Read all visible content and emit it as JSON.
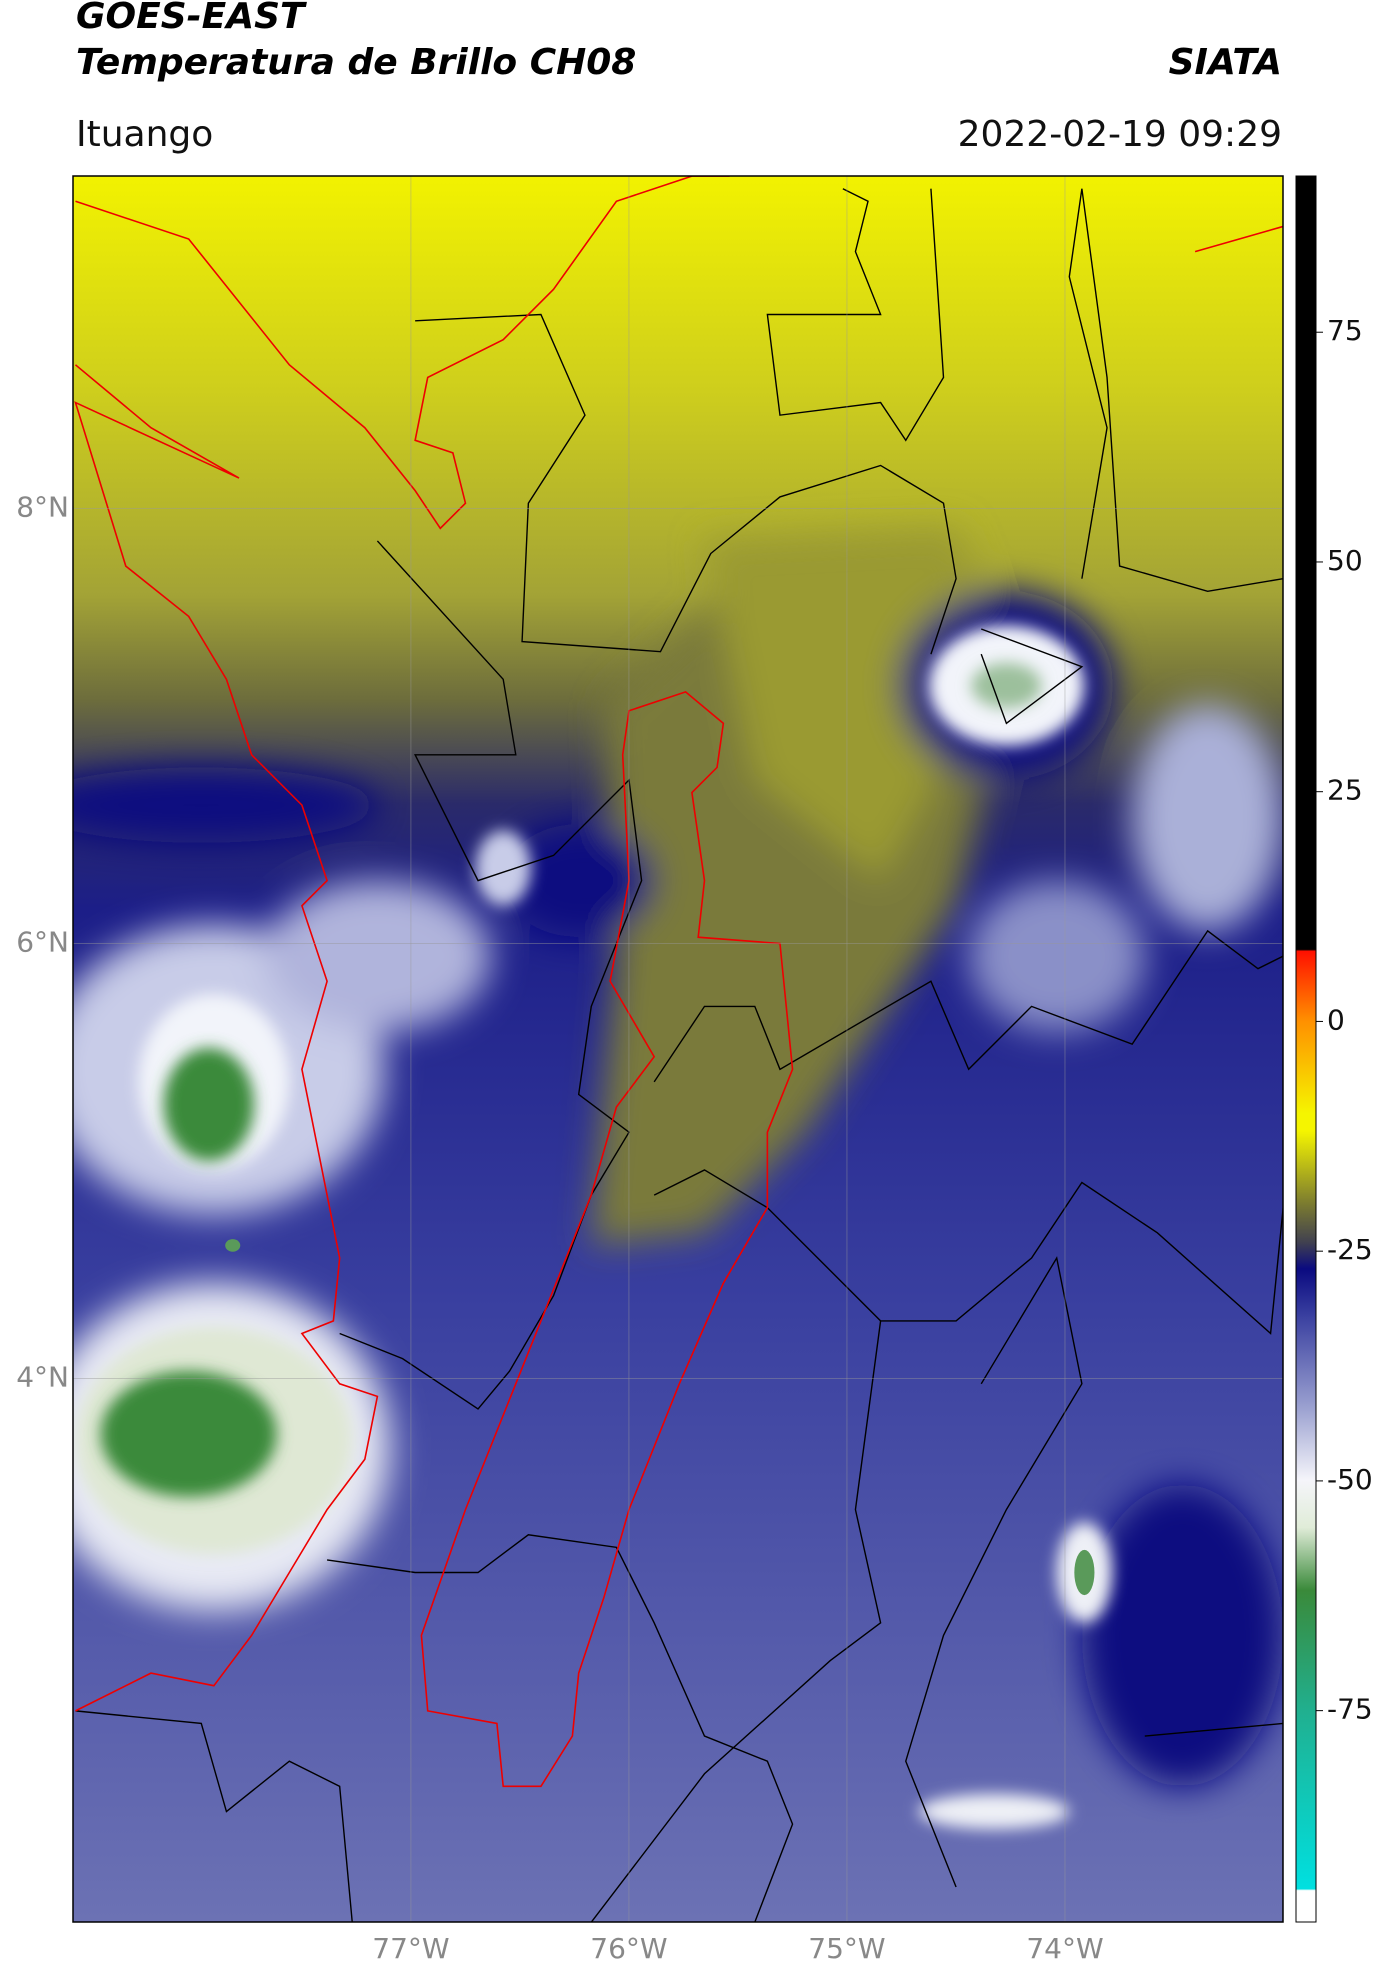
{
  "header": {
    "title": "GOES-EAST",
    "subtitle": "Temperatura de Brillo CH08",
    "source": "SIATA",
    "location": "Ituango",
    "datetime": "2022-02-19 09:29"
  },
  "map": {
    "xlim": [
      -78.55,
      -73.0
    ],
    "ylim": [
      1.5,
      9.53
    ],
    "xticks": [
      {
        "value": -77,
        "label": "77°W"
      },
      {
        "value": -76,
        "label": "76°W"
      },
      {
        "value": -75,
        "label": "75°W"
      },
      {
        "value": -74,
        "label": "74°W"
      }
    ],
    "yticks": [
      {
        "value": 4,
        "label": "4°N"
      },
      {
        "value": 6,
        "label": "6°N"
      },
      {
        "value": 8,
        "label": "8°N"
      }
    ],
    "grid": true
  },
  "colorbar": {
    "clim": [
      -98,
      92
    ],
    "ticks": [
      -75,
      -50,
      -25,
      0,
      25,
      50,
      75
    ]
  }
}
